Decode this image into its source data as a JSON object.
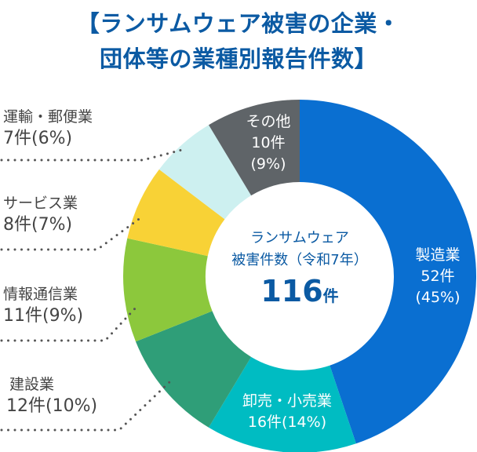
{
  "title": {
    "line1": "【ランサムウェア被害の企業・",
    "line2": "団体等の業種別報告件数】"
  },
  "center": {
    "line1": "ランサムウェア",
    "line2": "被害件数（令和7年）",
    "total": "116",
    "unit": "件"
  },
  "chart_data": {
    "type": "pie",
    "donut": true,
    "title": "【ランサムウェア被害の企業・団体等の業種別報告件数】",
    "total": 116,
    "slices": [
      {
        "name": "製造業",
        "value": 52,
        "count_label": "52件",
        "percent_label": "(45%)",
        "color": "#0a6fd1"
      },
      {
        "name": "卸売・小売業",
        "value": 16,
        "count_label": "16件(14%)",
        "color": "#00bcc2"
      },
      {
        "name": "建設業",
        "value": 12,
        "count_label": "12件(10%)",
        "color": "#2f9e78"
      },
      {
        "name": "情報通信業",
        "value": 11,
        "count_label": "11件(9%)",
        "color": "#8cc83c"
      },
      {
        "name": "サービス業",
        "value": 8,
        "count_label": "8件(7%)",
        "color": "#f8d236"
      },
      {
        "name": "運輸・郵便業",
        "value": 7,
        "count_label": "7件(6%)",
        "color": "#cdf0f0"
      },
      {
        "name": "その他",
        "value": 10,
        "count_label": "10件",
        "percent_label": "(9%)",
        "color": "#5f6468"
      }
    ]
  }
}
